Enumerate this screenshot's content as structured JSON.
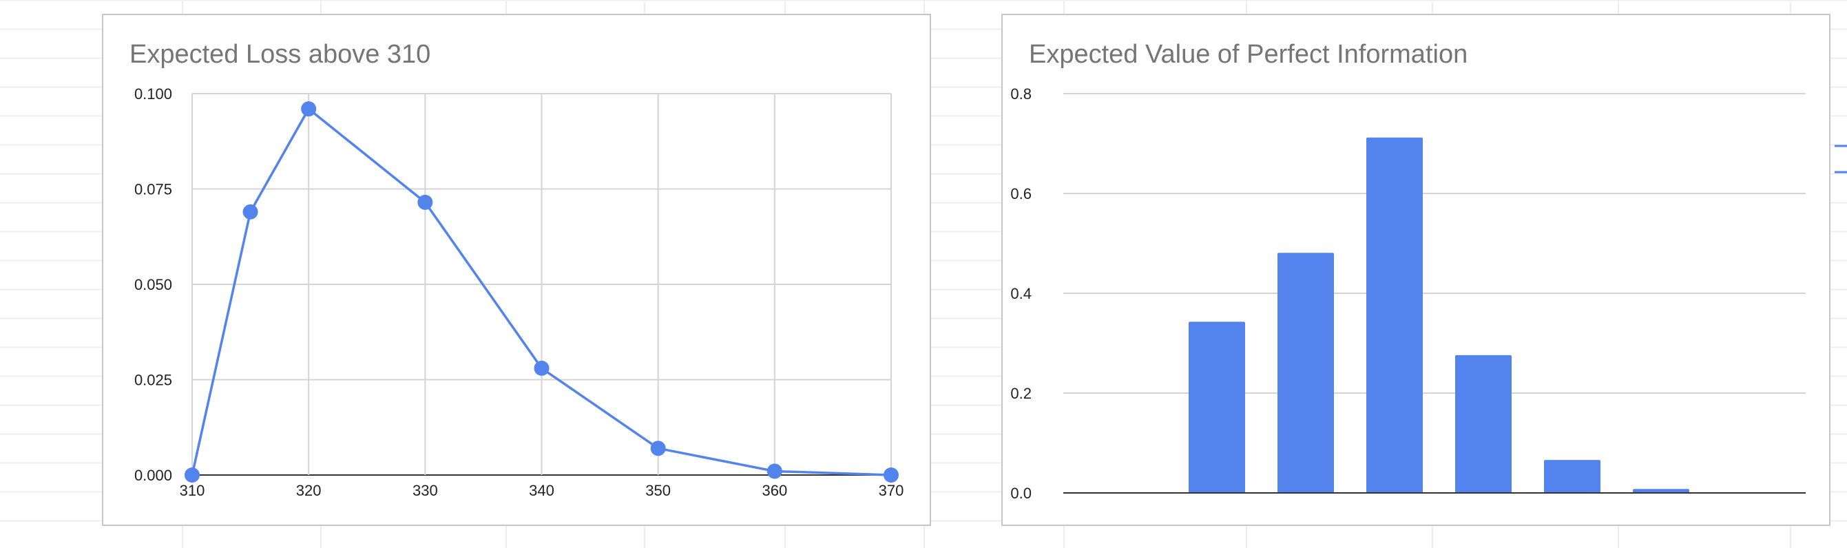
{
  "chart_data": [
    {
      "type": "line",
      "title": "Expected Loss above 310",
      "xlabel": "",
      "ylabel": "",
      "x": [
        310,
        315,
        320,
        330,
        340,
        350,
        360,
        370
      ],
      "xticks": [
        "310",
        "320",
        "330",
        "340",
        "350",
        "360",
        "370"
      ],
      "series": [
        {
          "values": [
            0.0,
            0.069,
            0.096,
            0.0715,
            0.028,
            0.007,
            0.001,
            0.0
          ]
        }
      ],
      "yticks": [
        "0.000",
        "0.025",
        "0.050",
        "0.075",
        "0.100"
      ],
      "xlim": [
        310,
        370
      ],
      "ylim": [
        0,
        0.1
      ],
      "grid": true,
      "legend": "none",
      "color": "#5383ec"
    },
    {
      "type": "bar",
      "title": "Expected Value of Perfect Information",
      "xlabel": "",
      "ylabel": "",
      "categories": [
        "",
        "",
        "",
        "",
        "",
        "",
        ""
      ],
      "values": [
        0.0,
        0.343,
        0.481,
        0.712,
        0.276,
        0.066,
        0.008
      ],
      "yticks": [
        "0.0",
        "0.2",
        "0.4",
        "0.6",
        "0.8"
      ],
      "ylim": [
        0,
        0.8
      ],
      "grid": true,
      "legend": "none",
      "color": "#5383ec"
    }
  ]
}
